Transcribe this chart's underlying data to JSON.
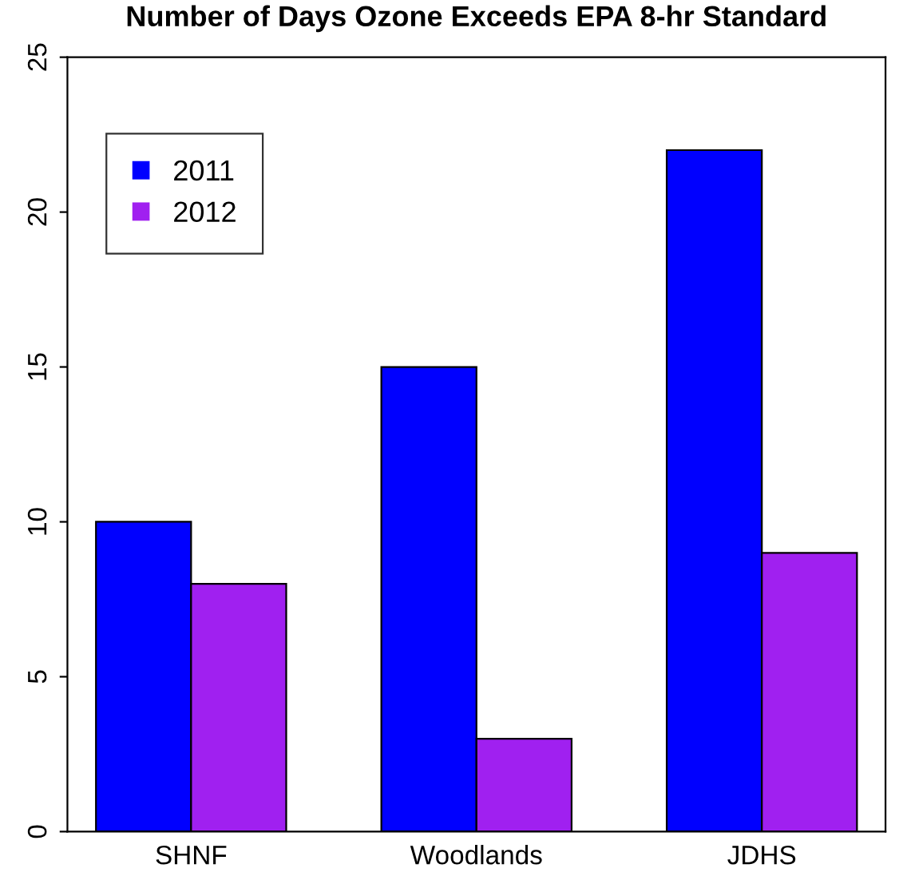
{
  "chart_data": {
    "type": "bar",
    "title": "Number of Days Ozone Exceeds EPA 8-hr Standard",
    "categories": [
      "SHNF",
      "Woodlands",
      "JDHS"
    ],
    "series": [
      {
        "name": "2011",
        "color": "#0000ff",
        "values": [
          10,
          15,
          22
        ]
      },
      {
        "name": "2012",
        "color": "#a020f0",
        "values": [
          8,
          3,
          9
        ]
      }
    ],
    "ylim": [
      0,
      25
    ],
    "yticks": [
      0,
      5,
      10,
      15,
      20,
      25
    ],
    "grid": false,
    "legend": "top left"
  }
}
